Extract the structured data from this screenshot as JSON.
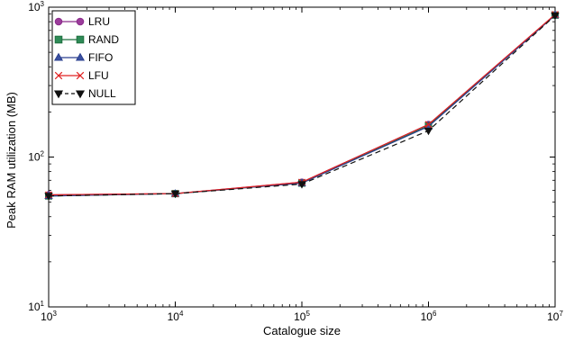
{
  "chart_data": {
    "type": "line",
    "xscale": "log",
    "yscale": "log",
    "x": [
      1000,
      10000,
      100000,
      1000000,
      10000000
    ],
    "xlim": [
      1000,
      10000000
    ],
    "ylim": [
      10,
      1000
    ],
    "xlabel": "Catalogue size",
    "ylabel": "Peak RAM utilization (MB)",
    "grid": false,
    "legend_position": "top-left",
    "x_ticks": [
      {
        "value": 1000,
        "base": "10",
        "exp": "3"
      },
      {
        "value": 10000,
        "base": "10",
        "exp": "4"
      },
      {
        "value": 100000,
        "base": "10",
        "exp": "5"
      },
      {
        "value": 1000000,
        "base": "10",
        "exp": "6"
      },
      {
        "value": 10000000,
        "base": "10",
        "exp": "7"
      }
    ],
    "y_ticks": [
      {
        "value": 10,
        "base": "10",
        "exp": "1"
      },
      {
        "value": 100,
        "base": "10",
        "exp": "2"
      },
      {
        "value": 1000,
        "base": "10",
        "exp": "3"
      }
    ],
    "series": [
      {
        "name": "LRU",
        "values": [
          56,
          57,
          68,
          165,
          890
        ],
        "color": "#8b2c8b",
        "marker": "circle",
        "fill": "#9b3c9b",
        "dash": ""
      },
      {
        "name": "RAND",
        "values": [
          55,
          57,
          67,
          162,
          885
        ],
        "color": "#1f6f3f",
        "marker": "square",
        "fill": "#2e8b57",
        "dash": ""
      },
      {
        "name": "FIFO",
        "values": [
          55,
          57,
          67,
          160,
          885
        ],
        "color": "#2a3f8f",
        "marker": "triangle",
        "fill": "#3a50a0",
        "dash": ""
      },
      {
        "name": "LFU",
        "values": [
          56,
          57,
          68,
          165,
          895
        ],
        "color": "#e02020",
        "marker": "x",
        "fill": "none",
        "dash": ""
      },
      {
        "name": "NULL",
        "values": [
          55,
          57,
          66,
          150,
          880
        ],
        "color": "#111111",
        "marker": "tri_down",
        "fill": "#111111",
        "dash": "6,4"
      }
    ]
  }
}
